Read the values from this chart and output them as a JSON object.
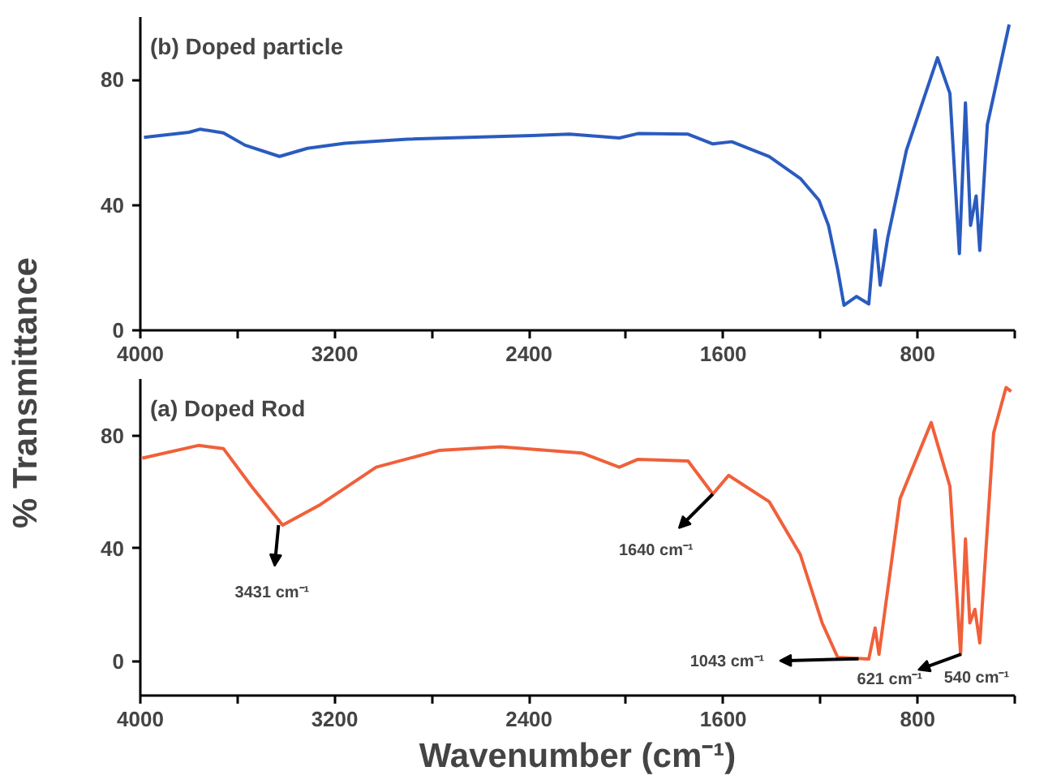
{
  "chart_data": [
    {
      "type": "line",
      "title": "(b) Doped particle",
      "ylabel": "% Transmittance",
      "xlim": [
        4000,
        400
      ],
      "ylim": [
        0,
        100
      ],
      "xticks": [
        4000,
        {
          "value": 3600,
          "label": null
        },
        3200,
        {
          "value": 2800,
          "label": null
        },
        2400,
        {
          "value": 2000,
          "label": null
        },
        1600,
        {
          "value": 1200,
          "label": null
        },
        800,
        {
          "value": 400,
          "label": null
        }
      ],
      "yticks": [
        0,
        40,
        80
      ],
      "grid": false,
      "series": [
        {
          "color": "#2a5bbf",
          "x": [
            3985,
            3800,
            3753,
            3658,
            3569,
            3427,
            3312,
            3158,
            2901,
            2387,
            2233,
            2028,
            1951,
            1745,
            1643,
            1565,
            1411,
            1283,
            1206,
            1167,
            1129,
            1103,
            1052,
            1001,
            975,
            954,
            923,
            846,
            718,
            667,
            628,
            603,
            582,
            559,
            544,
            513,
            423
          ],
          "values": [
            61.6,
            63.2,
            64.2,
            63,
            59.1,
            55.5,
            58.1,
            59.7,
            61,
            62.2,
            62.6,
            61.4,
            62.8,
            62.6,
            59.5,
            60.2,
            55.5,
            48.5,
            41.5,
            33.5,
            19.4,
            8,
            10.8,
            8.4,
            32,
            14.4,
            29.5,
            57.5,
            87,
            75.6,
            24.5,
            72.6,
            33.5,
            42.9,
            25.5,
            65.6,
            97.6
          ]
        }
      ]
    },
    {
      "type": "line",
      "title": "(a) Doped Rod",
      "xlabel": "Wavenumber (cm⁻¹)",
      "xlim": [
        4000,
        400
      ],
      "ylim": [
        -12,
        100
      ],
      "xticks": [
        4000,
        {
          "value": 3600,
          "label": null
        },
        3200,
        {
          "value": 2800,
          "label": null
        },
        2400,
        {
          "value": 2000,
          "label": null
        },
        1600,
        {
          "value": 1200,
          "label": null
        },
        800,
        {
          "value": 400,
          "label": null
        }
      ],
      "yticks": [
        0,
        40,
        80
      ],
      "grid": false,
      "annotations": [
        {
          "text": "3431 cm⁻¹",
          "x": 3431,
          "y": 48.3
        },
        {
          "text": "1640 cm⁻¹",
          "x": 1643,
          "y": 59.3
        },
        {
          "text": "1043 cm⁻¹",
          "x": 1043,
          "y": 1
        },
        {
          "text": "621 cm⁻¹",
          "x": 621,
          "y": 2.6
        },
        {
          "text": "540 cm⁻¹",
          "x": 544,
          "y": 6.6
        }
      ],
      "series": [
        {
          "color": "#f0603a",
          "x": [
            3992,
            3761,
            3658,
            3543,
            3414,
            3260,
            3029,
            2772,
            2516,
            2182,
            2028,
            1951,
            1745,
            1643,
            1578,
            1411,
            1283,
            1193,
            1129,
            1001,
            975,
            959,
            872,
            744,
            667,
            623,
            603,
            585,
            564,
            544,
            487,
            436,
            415
          ],
          "values": [
            72,
            76.5,
            75.4,
            62.1,
            48.3,
            55.5,
            68.8,
            74.7,
            76,
            73.8,
            68.8,
            71.6,
            71,
            59.3,
            65.9,
            56.6,
            37.9,
            13.7,
            1.5,
            0.9,
            11.9,
            2.6,
            57.7,
            84.6,
            62.1,
            2.6,
            43.4,
            13.7,
            18.5,
            6.6,
            80.9,
            97,
            95.6
          ]
        }
      ]
    }
  ]
}
